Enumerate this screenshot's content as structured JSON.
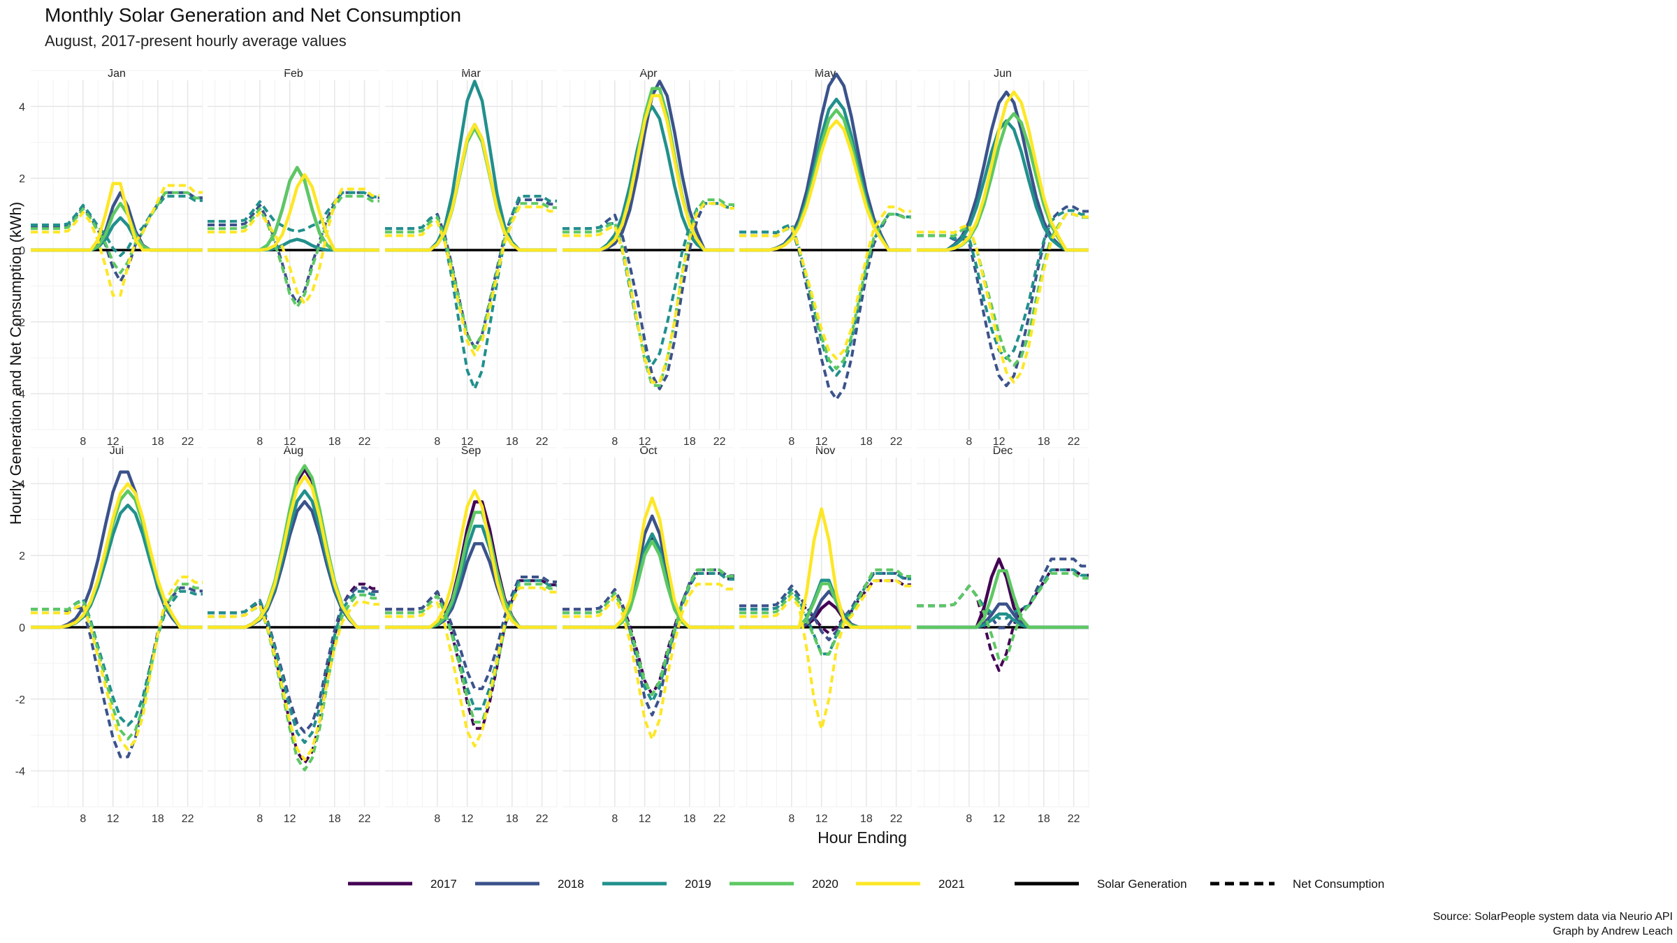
{
  "title": "Monthly Solar Generation and Net Consumption",
  "subtitle": "August, 2017-present hourly average values",
  "caption_lines": [
    "Source: SolarPeople system data via Neurio API",
    "Graph by Andrew Leach"
  ],
  "colors": {
    "2017": "#440154",
    "2018": "#3B528B",
    "2019": "#21908C",
    "2020": "#5DC863",
    "2021": "#FDE725",
    "zero_line": "#000000",
    "grid_major": "#E6E6E6",
    "grid_minor": "#F2F2F2"
  },
  "chart_data": {
    "type": "line",
    "xlabel": "Hour Ending",
    "ylabel": "Hourly Generation and Net Consumption (kWh)",
    "xlim": [
      1,
      24
    ],
    "ylim": [
      -5,
      5
    ],
    "x_ticks": [
      8,
      12,
      18,
      22
    ],
    "y_ticks": [
      -4,
      -2,
      0,
      2,
      4
    ],
    "grid": true,
    "legend_position": "bottom",
    "legend": {
      "years": [
        "2017",
        "2018",
        "2019",
        "2020",
        "2021"
      ],
      "types": [
        {
          "label": "Solar Generation",
          "style": "solid"
        },
        {
          "label": "Net Consumption",
          "style": "dashed"
        }
      ]
    },
    "panels": [
      {
        "month": "Jan",
        "series": [
          {
            "year": "2018",
            "solar": {
              "start": 9,
              "end": 17,
              "peak_hour": 13,
              "peak": 1.6
            },
            "net": {
              "base": 0.65,
              "eve": 1.6
            }
          },
          {
            "year": "2019",
            "solar": {
              "start": 9,
              "end": 17,
              "peak_hour": 13,
              "peak": 0.9
            },
            "net": {
              "base": 0.7,
              "eve": 1.5
            }
          },
          {
            "year": "2020",
            "solar": {
              "start": 9,
              "end": 17,
              "peak_hour": 13,
              "peak": 1.3
            },
            "net": {
              "base": 0.6,
              "eve": 1.6
            }
          },
          {
            "year": "2021",
            "solar": {
              "start": 9,
              "end": 16,
              "peak_hour": 12.5,
              "peak": 2.0
            },
            "net": {
              "base": 0.5,
              "eve": 1.8
            }
          }
        ]
      },
      {
        "month": "Feb",
        "series": [
          {
            "year": "2018",
            "solar": {
              "start": 8,
              "end": 18,
              "peak_hour": 13,
              "peak": 2.3
            },
            "net": {
              "base": 0.7,
              "eve": 1.6
            }
          },
          {
            "year": "2019",
            "solar": {
              "start": 8,
              "end": 17,
              "peak_hour": 13,
              "peak": 0.3
            },
            "net": {
              "base": 0.8,
              "eve": 1.6
            }
          },
          {
            "year": "2020",
            "solar": {
              "start": 8,
              "end": 18,
              "peak_hour": 13,
              "peak": 2.3
            },
            "net": {
              "base": 0.6,
              "eve": 1.5
            }
          },
          {
            "year": "2021",
            "solar": {
              "start": 8,
              "end": 18,
              "peak_hour": 14,
              "peak": 2.1
            },
            "net": {
              "base": 0.5,
              "eve": 1.7
            }
          }
        ]
      },
      {
        "month": "Mar",
        "series": [
          {
            "year": "2018",
            "solar": {
              "start": 7,
              "end": 19,
              "peak_hour": 13,
              "peak": 3.5
            },
            "net": {
              "base": 0.6,
              "eve": 1.4
            }
          },
          {
            "year": "2019",
            "solar": {
              "start": 7,
              "end": 19,
              "peak_hour": 13,
              "peak": 4.7
            },
            "net": {
              "base": 0.6,
              "eve": 1.5
            }
          },
          {
            "year": "2020",
            "solar": {
              "start": 7,
              "end": 19,
              "peak_hour": 13,
              "peak": 3.4
            },
            "net": {
              "base": 0.5,
              "eve": 1.3
            }
          },
          {
            "year": "2021",
            "solar": {
              "start": 7,
              "end": 19,
              "peak_hour": 13,
              "peak": 3.5
            },
            "net": {
              "base": 0.4,
              "eve": 1.2
            }
          }
        ]
      },
      {
        "month": "Apr",
        "series": [
          {
            "year": "2018",
            "solar": {
              "start": 6,
              "end": 20,
              "peak_hour": 14,
              "peak": 4.7
            },
            "net": {
              "base": 0.6,
              "eve": 1.3
            }
          },
          {
            "year": "2019",
            "solar": {
              "start": 6,
              "end": 20,
              "peak_hour": 13,
              "peak": 4.0
            },
            "net": {
              "base": 0.6,
              "eve": 1.3
            }
          },
          {
            "year": "2020",
            "solar": {
              "start": 6,
              "end": 20,
              "peak_hour": 13.5,
              "peak": 4.6
            },
            "net": {
              "base": 0.5,
              "eve": 1.4
            }
          },
          {
            "year": "2021",
            "solar": {
              "start": 6,
              "end": 20,
              "peak_hour": 13.5,
              "peak": 4.4
            },
            "net": {
              "base": 0.4,
              "eve": 1.3
            }
          }
        ]
      },
      {
        "month": "May",
        "series": [
          {
            "year": "2018",
            "solar": {
              "start": 5,
              "end": 21,
              "peak_hour": 14,
              "peak": 4.9
            },
            "net": {
              "base": 0.5,
              "eve": 1.0
            }
          },
          {
            "year": "2019",
            "solar": {
              "start": 5,
              "end": 21,
              "peak_hour": 14,
              "peak": 4.2
            },
            "net": {
              "base": 0.5,
              "eve": 1.0
            }
          },
          {
            "year": "2020",
            "solar": {
              "start": 5,
              "end": 21,
              "peak_hour": 14,
              "peak": 3.9
            },
            "net": {
              "base": 0.4,
              "eve": 1.0
            }
          },
          {
            "year": "2021",
            "solar": {
              "start": 5,
              "end": 21,
              "peak_hour": 14,
              "peak": 3.6
            },
            "net": {
              "base": 0.4,
              "eve": 1.2
            }
          }
        ]
      },
      {
        "month": "Jun",
        "series": [
          {
            "year": "2018",
            "solar": {
              "start": 5,
              "end": 21,
              "peak_hour": 13,
              "peak": 4.4
            },
            "net": {
              "base": 0.4,
              "eve": 1.2
            }
          },
          {
            "year": "2019",
            "solar": {
              "start": 5,
              "end": 21,
              "peak_hour": 13,
              "peak": 3.6
            },
            "net": {
              "base": 0.4,
              "eve": 1.1
            }
          },
          {
            "year": "2020",
            "solar": {
              "start": 5,
              "end": 21,
              "peak_hour": 14,
              "peak": 3.8
            },
            "net": {
              "base": 0.4,
              "eve": 1.0
            }
          },
          {
            "year": "2021",
            "solar": {
              "start": 5,
              "end": 21,
              "peak_hour": 14,
              "peak": 4.4
            },
            "net": {
              "base": 0.5,
              "eve": 1.0
            }
          }
        ]
      },
      {
        "month": "Jul",
        "series": [
          {
            "year": "2018",
            "solar": {
              "start": 5,
              "end": 21,
              "peak_hour": 13.5,
              "peak": 4.4
            },
            "net": {
              "base": 0.5,
              "eve": 1.1
            }
          },
          {
            "year": "2019",
            "solar": {
              "start": 5,
              "end": 21,
              "peak_hour": 14,
              "peak": 3.4
            },
            "net": {
              "base": 0.5,
              "eve": 1.0
            }
          },
          {
            "year": "2020",
            "solar": {
              "start": 5,
              "end": 21,
              "peak_hour": 14,
              "peak": 3.8
            },
            "net": {
              "base": 0.5,
              "eve": 1.2
            }
          },
          {
            "year": "2021",
            "solar": {
              "start": 5,
              "end": 21,
              "peak_hour": 14,
              "peak": 4.0
            },
            "net": {
              "base": 0.4,
              "eve": 1.4
            }
          }
        ]
      },
      {
        "month": "Aug",
        "series": [
          {
            "year": "2017",
            "solar": {
              "start": 6,
              "end": 21,
              "peak_hour": 14,
              "peak": 4.4
            },
            "net": {
              "base": 0.4,
              "eve": 1.2
            }
          },
          {
            "year": "2018",
            "solar": {
              "start": 6,
              "end": 21,
              "peak_hour": 14,
              "peak": 3.5
            },
            "net": {
              "base": 0.4,
              "eve": 1.1
            }
          },
          {
            "year": "2019",
            "solar": {
              "start": 6,
              "end": 21,
              "peak_hour": 14,
              "peak": 3.8
            },
            "net": {
              "base": 0.4,
              "eve": 1.0
            }
          },
          {
            "year": "2020",
            "solar": {
              "start": 6,
              "end": 21,
              "peak_hour": 14,
              "peak": 4.5
            },
            "net": {
              "base": 0.3,
              "eve": 0.9
            }
          },
          {
            "year": "2021",
            "solar": {
              "start": 6,
              "end": 21,
              "peak_hour": 14,
              "peak": 4.2
            },
            "net": {
              "base": 0.3,
              "eve": 0.7
            }
          }
        ]
      },
      {
        "month": "Sep",
        "series": [
          {
            "year": "2017",
            "solar": {
              "start": 7,
              "end": 19,
              "peak_hour": 13.5,
              "peak": 3.6
            },
            "net": {
              "base": 0.5,
              "eve": 1.3
            }
          },
          {
            "year": "2018",
            "solar": {
              "start": 7,
              "end": 19,
              "peak_hour": 13.5,
              "peak": 2.4
            },
            "net": {
              "base": 0.5,
              "eve": 1.4
            }
          },
          {
            "year": "2019",
            "solar": {
              "start": 7,
              "end": 19,
              "peak_hour": 13.5,
              "peak": 2.9
            },
            "net": {
              "base": 0.4,
              "eve": 1.3
            }
          },
          {
            "year": "2020",
            "solar": {
              "start": 7,
              "end": 19,
              "peak_hour": 13.5,
              "peak": 3.3
            },
            "net": {
              "base": 0.4,
              "eve": 1.2
            }
          },
          {
            "year": "2021",
            "solar": {
              "start": 7,
              "end": 19,
              "peak_hour": 13,
              "peak": 3.8
            },
            "net": {
              "base": 0.3,
              "eve": 1.1
            }
          }
        ]
      },
      {
        "month": "Oct",
        "series": [
          {
            "year": "2017",
            "solar": {
              "start": 8,
              "end": 18,
              "peak_hour": 13,
              "peak": 2.5
            },
            "net": {
              "base": 0.5,
              "eve": 1.5
            }
          },
          {
            "year": "2018",
            "solar": {
              "start": 8,
              "end": 18,
              "peak_hour": 13,
              "peak": 3.1
            },
            "net": {
              "base": 0.5,
              "eve": 1.6
            }
          },
          {
            "year": "2019",
            "solar": {
              "start": 8,
              "end": 18,
              "peak_hour": 13,
              "peak": 2.6
            },
            "net": {
              "base": 0.4,
              "eve": 1.5
            }
          },
          {
            "year": "2020",
            "solar": {
              "start": 8,
              "end": 18,
              "peak_hour": 13,
              "peak": 2.4
            },
            "net": {
              "base": 0.4,
              "eve": 1.6
            }
          },
          {
            "year": "2021",
            "solar": {
              "start": 8,
              "end": 18,
              "peak_hour": 13,
              "peak": 3.6
            },
            "net": {
              "base": 0.3,
              "eve": 1.2
            }
          }
        ]
      },
      {
        "month": "Nov",
        "series": [
          {
            "year": "2017",
            "solar": {
              "start": 9,
              "end": 17,
              "peak_hour": 13,
              "peak": 0.7
            },
            "net": {
              "base": 0.5,
              "eve": 1.3
            }
          },
          {
            "year": "2018",
            "solar": {
              "start": 9,
              "end": 17,
              "peak_hour": 13,
              "peak": 1.0
            },
            "net": {
              "base": 0.6,
              "eve": 1.5
            }
          },
          {
            "year": "2019",
            "solar": {
              "start": 9,
              "end": 17,
              "peak_hour": 12.5,
              "peak": 1.4
            },
            "net": {
              "base": 0.5,
              "eve": 1.5
            }
          },
          {
            "year": "2020",
            "solar": {
              "start": 9,
              "end": 17,
              "peak_hour": 12.5,
              "peak": 1.3
            },
            "net": {
              "base": 0.4,
              "eve": 1.6
            }
          },
          {
            "year": "2021",
            "solar": {
              "start": 9,
              "end": 16,
              "peak_hour": 12,
              "peak": 3.3
            },
            "net": {
              "base": 0.3,
              "eve": 1.3
            }
          }
        ]
      },
      {
        "month": "Dec",
        "series": [
          {
            "year": "2017",
            "solar": {
              "start": 9,
              "end": 16,
              "peak_hour": 12,
              "peak": 1.9
            },
            "net": {
              "base": 0.6,
              "eve": 1.6
            }
          },
          {
            "year": "2018",
            "solar": {
              "start": 9,
              "end": 16,
              "peak_hour": 12.5,
              "peak": 0.7
            },
            "net": {
              "base": 0.6,
              "eve": 1.9
            }
          },
          {
            "year": "2019",
            "solar": {
              "start": 9,
              "end": 16,
              "peak_hour": 12.5,
              "peak": 0.4
            },
            "net": {
              "base": 0.6,
              "eve": 1.6
            }
          },
          {
            "year": "2020",
            "solar": {
              "start": 9,
              "end": 16,
              "peak_hour": 12.5,
              "peak": 1.7
            },
            "net": {
              "base": 0.6,
              "eve": 1.5
            }
          }
        ]
      }
    ]
  }
}
